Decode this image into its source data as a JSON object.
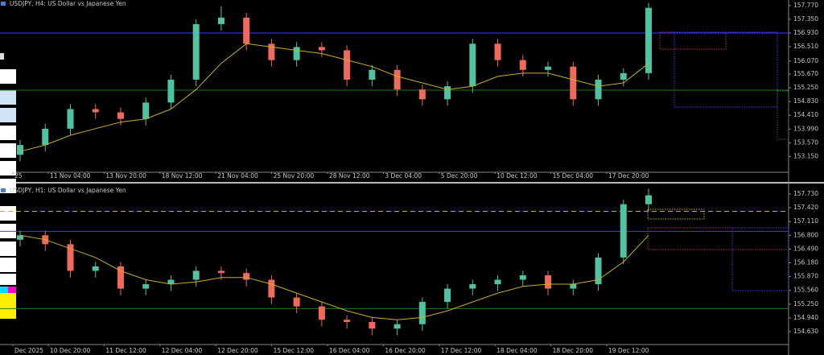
{
  "chart_data": [
    {
      "type": "candlestick",
      "title": "USDJPY, H4:  US Dollar vs Japanese Yen",
      "up_color": "#4fc3a1",
      "down_color": "#ef6a5a",
      "ma_color": "#c9b020",
      "ylim": [
        152.69,
        157.89
      ],
      "yticks": [
        {
          "value": 157.77,
          "label": "157.770"
        },
        {
          "value": 157.35,
          "label": "157.350"
        },
        {
          "value": 156.93,
          "label": "156.930"
        },
        {
          "value": 156.51,
          "label": "156.510"
        },
        {
          "value": 156.07,
          "label": "156.070"
        },
        {
          "value": 155.67,
          "label": "155.670"
        },
        {
          "value": 155.25,
          "label": "155.250"
        },
        {
          "value": 154.83,
          "label": "154.830"
        },
        {
          "value": 154.41,
          "label": "154.410"
        },
        {
          "value": 153.99,
          "label": "153.990"
        },
        {
          "value": 153.57,
          "label": "153.570"
        },
        {
          "value": 153.15,
          "label": "153.150"
        }
      ],
      "time_labels": [
        "25",
        "11 Nov 04:00",
        "13 Nov 20:00",
        "18 Nov 12:00",
        "21 Nov 04:00",
        "25 Nov 20:00",
        "28 Nov 12:00",
        "3 Dec 04:00",
        "5 Dec 20:00",
        "10 Dec 12:00",
        "15 Dec 04:00",
        "17 Dec 20:00"
      ],
      "open": [
        153.2,
        153.5,
        154.0,
        154.6,
        154.5,
        154.3,
        154.8,
        155.5,
        157.2,
        157.4,
        156.6,
        156.1,
        156.5,
        156.4,
        155.5,
        155.8,
        155.2,
        154.9,
        155.3,
        156.6,
        156.1,
        155.8,
        155.9,
        154.9,
        155.5,
        155.7
      ],
      "high": [
        153.65,
        154.15,
        154.75,
        154.75,
        154.65,
        154.95,
        155.65,
        157.35,
        157.75,
        157.55,
        156.75,
        156.65,
        156.65,
        156.55,
        155.95,
        155.95,
        155.35,
        155.45,
        156.75,
        156.75,
        156.25,
        156.05,
        156.05,
        155.65,
        155.85,
        157.85
      ],
      "low": [
        153.0,
        153.3,
        153.8,
        154.3,
        154.1,
        154.1,
        154.6,
        155.3,
        157.0,
        156.4,
        155.9,
        155.9,
        156.2,
        155.3,
        155.3,
        155.0,
        154.7,
        154.7,
        155.1,
        155.9,
        155.6,
        155.6,
        154.7,
        154.7,
        155.3,
        155.5
      ],
      "close": [
        153.5,
        154.0,
        154.6,
        154.5,
        154.3,
        154.8,
        155.5,
        157.2,
        157.4,
        156.6,
        156.1,
        156.5,
        156.4,
        155.5,
        155.8,
        155.2,
        154.9,
        155.3,
        156.6,
        156.1,
        155.8,
        155.9,
        154.9,
        155.5,
        155.7,
        157.7
      ],
      "ma": [
        153.3,
        153.5,
        153.8,
        154.0,
        154.2,
        154.3,
        154.6,
        155.2,
        156.0,
        156.6,
        156.5,
        156.4,
        156.3,
        156.1,
        155.9,
        155.6,
        155.4,
        155.2,
        155.3,
        155.6,
        155.7,
        155.7,
        155.5,
        155.3,
        155.4,
        156.0
      ],
      "levels": [
        {
          "value": 156.93,
          "color": "#3a3aff",
          "style": "solid"
        },
        {
          "value": 155.18,
          "color": "#1f7a1f",
          "style": "solid"
        }
      ]
    },
    {
      "type": "candlestick",
      "title": "USDJPY, H1:  US Dollar vs Japanese Yen",
      "up_color": "#4fc3a1",
      "down_color": "#ef6a5a",
      "ma_color": "#c9b020",
      "ylim": [
        154.36,
        157.91
      ],
      "yticks": [
        {
          "value": 157.73,
          "label": "157.730"
        },
        {
          "value": 157.42,
          "label": "157.420"
        },
        {
          "value": 157.11,
          "label": "157.110"
        },
        {
          "value": 156.8,
          "label": "156.800"
        },
        {
          "value": 156.49,
          "label": "156.490"
        },
        {
          "value": 156.18,
          "label": "156.180"
        },
        {
          "value": 155.87,
          "label": "155.870"
        },
        {
          "value": 155.56,
          "label": "155.560"
        },
        {
          "value": 155.25,
          "label": "155.250"
        },
        {
          "value": 154.94,
          "label": "154.940"
        },
        {
          "value": 154.63,
          "label": "154.630"
        }
      ],
      "time_labels": [
        "Dec 2025",
        "10 Dec 20:00",
        "11 Dec 12:00",
        "12 Dec 04:00",
        "12 Dec 20:00",
        "15 Dec 12:00",
        "16 Dec 04:00",
        "16 Dec 20:00",
        "17 Dec 12:00",
        "18 Dec 04:00",
        "18 Dec 20:00",
        "19 Dec 12:00"
      ],
      "open": [
        156.7,
        156.8,
        156.6,
        156.0,
        156.1,
        155.6,
        155.7,
        155.8,
        156.0,
        155.95,
        155.8,
        155.4,
        155.2,
        154.9,
        154.85,
        154.7,
        154.8,
        155.3,
        155.6,
        155.7,
        155.8,
        155.9,
        155.6,
        155.7,
        156.3,
        157.5
      ],
      "high": [
        156.9,
        156.9,
        156.7,
        156.2,
        156.2,
        155.8,
        155.9,
        156.1,
        156.1,
        156.05,
        155.9,
        155.5,
        155.3,
        155.0,
        154.95,
        154.9,
        155.4,
        155.7,
        155.8,
        155.9,
        156.0,
        156.0,
        155.8,
        156.4,
        157.6,
        157.85
      ],
      "low": [
        156.55,
        156.45,
        155.85,
        155.85,
        155.45,
        155.45,
        155.55,
        155.65,
        155.8,
        155.65,
        155.25,
        155.05,
        154.75,
        154.7,
        154.55,
        154.55,
        154.65,
        155.15,
        155.45,
        155.55,
        155.65,
        155.45,
        155.45,
        155.55,
        156.15,
        157.35
      ],
      "close": [
        156.8,
        156.6,
        156.0,
        156.1,
        155.6,
        155.7,
        155.8,
        156.0,
        155.95,
        155.8,
        155.4,
        155.2,
        154.9,
        154.85,
        154.7,
        154.8,
        155.3,
        155.6,
        155.7,
        155.8,
        155.9,
        155.6,
        155.7,
        156.3,
        157.5,
        157.7
      ],
      "ma": [
        156.8,
        156.7,
        156.5,
        156.3,
        156.0,
        155.8,
        155.7,
        155.75,
        155.85,
        155.85,
        155.7,
        155.5,
        155.3,
        155.1,
        154.95,
        154.9,
        154.95,
        155.1,
        155.3,
        155.5,
        155.65,
        155.7,
        155.7,
        155.8,
        156.2,
        156.8
      ],
      "levels": [
        {
          "value": 157.34,
          "color": "#c9b020",
          "style": "dashed"
        },
        {
          "value": 156.89,
          "color": "#3a3aff",
          "style": "solid"
        },
        {
          "value": 155.15,
          "color": "#1f7a1f",
          "style": "solid"
        }
      ]
    }
  ]
}
